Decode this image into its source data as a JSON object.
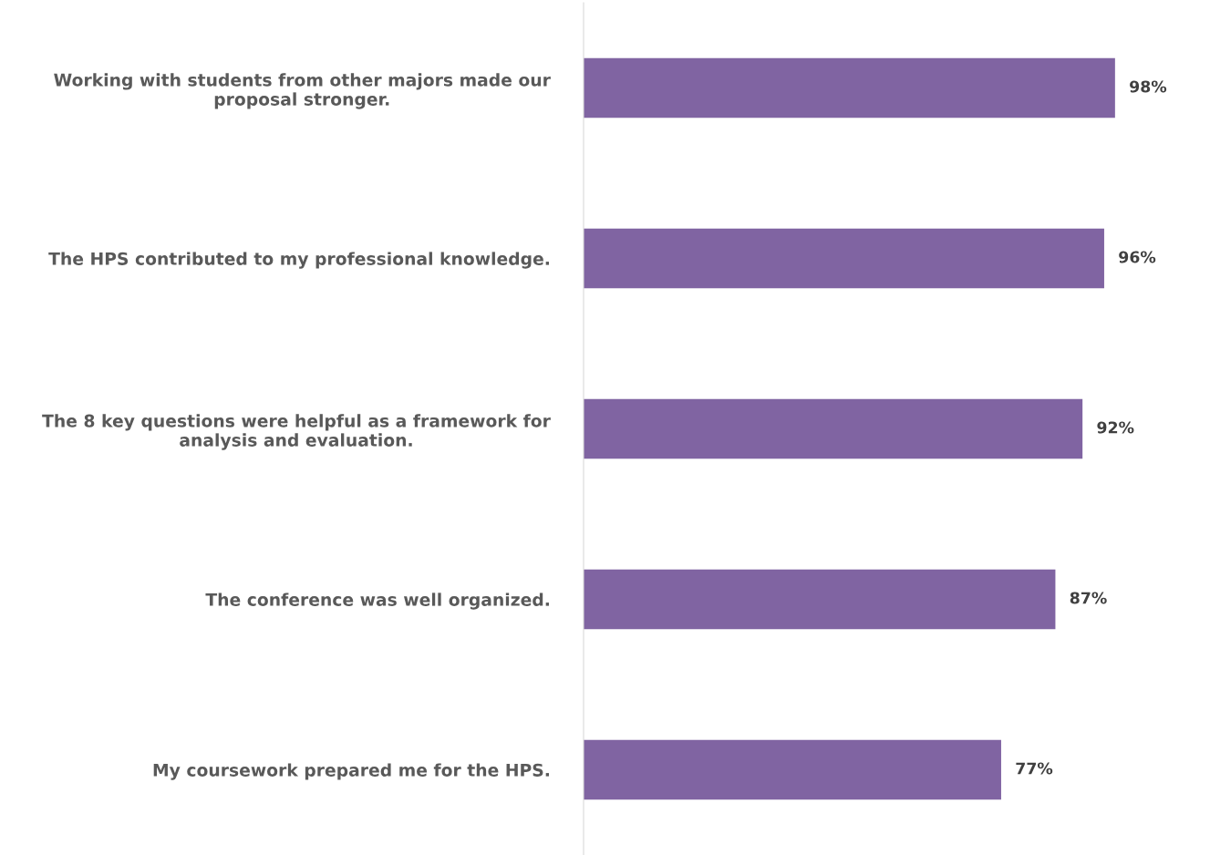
{
  "chart_data": {
    "type": "bar",
    "orientation": "horizontal",
    "categories": [
      "Working with students from other majors made our\nproposal stronger.",
      "The HPS contributed to my professional knowledge.",
      "The 8 key questions were helpful as a framework for\nanalysis and evaluation.",
      "The conference was well organized.",
      "My coursework prepared me for the HPS."
    ],
    "values": [
      98,
      96,
      92,
      87,
      77
    ],
    "value_labels": [
      "98%",
      "96%",
      "92%",
      "87%",
      "77%"
    ],
    "color": "#8064a2",
    "tick_labels": "y",
    "grid": false,
    "legend": false
  }
}
